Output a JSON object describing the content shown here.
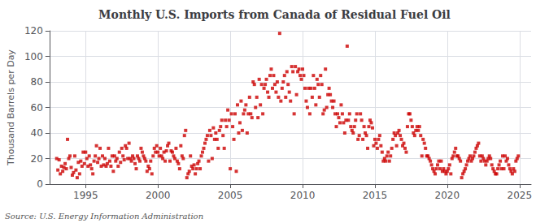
{
  "chart_data": {
    "type": "scatter",
    "title": "Monthly U.S. Imports from Canada of Residual Fuel Oil",
    "ylabel": "Thousand Barrels per Day",
    "annotations": [
      "Source: U.S. Energy Information Administration"
    ],
    "color": "#cc0000",
    "marker": "square",
    "grid": true,
    "xlim": [
      1992.5,
      2025.8
    ],
    "ylim": [
      0,
      120
    ],
    "xticks": [
      1995,
      2000,
      2005,
      2010,
      2015,
      2020,
      2025
    ],
    "yticks": [
      0,
      20,
      40,
      60,
      80,
      100,
      120
    ],
    "x": [
      1993.0,
      1993.083,
      1993.167,
      1993.25,
      1993.333,
      1993.417,
      1993.5,
      1993.583,
      1993.667,
      1993.75,
      1993.833,
      1993.917,
      1994.0,
      1994.083,
      1994.167,
      1994.25,
      1994.333,
      1994.417,
      1994.5,
      1994.583,
      1994.667,
      1994.75,
      1994.833,
      1994.917,
      1995.0,
      1995.083,
      1995.167,
      1995.25,
      1995.333,
      1995.417,
      1995.5,
      1995.583,
      1995.667,
      1995.75,
      1995.833,
      1995.917,
      1996.0,
      1996.083,
      1996.167,
      1996.25,
      1996.333,
      1996.417,
      1996.5,
      1996.583,
      1996.667,
      1996.75,
      1996.833,
      1996.917,
      1997.0,
      1997.083,
      1997.167,
      1997.25,
      1997.333,
      1997.417,
      1997.5,
      1997.583,
      1997.667,
      1997.75,
      1997.833,
      1997.917,
      1998.0,
      1998.083,
      1998.167,
      1998.25,
      1998.333,
      1998.417,
      1998.5,
      1998.583,
      1998.667,
      1998.75,
      1998.833,
      1998.917,
      1999.0,
      1999.083,
      1999.167,
      1999.25,
      1999.333,
      1999.417,
      1999.5,
      1999.583,
      1999.667,
      1999.75,
      1999.833,
      1999.917,
      2000.0,
      2000.083,
      2000.167,
      2000.25,
      2000.333,
      2000.417,
      2000.5,
      2000.583,
      2000.667,
      2000.75,
      2000.833,
      2000.917,
      2001.0,
      2001.083,
      2001.167,
      2001.25,
      2001.333,
      2001.417,
      2001.5,
      2001.583,
      2001.667,
      2001.75,
      2001.833,
      2001.917,
      2002.0,
      2002.083,
      2002.167,
      2002.25,
      2002.333,
      2002.417,
      2002.5,
      2002.583,
      2002.667,
      2002.75,
      2002.833,
      2002.917,
      2003.0,
      2003.083,
      2003.167,
      2003.25,
      2003.333,
      2003.417,
      2003.5,
      2003.583,
      2003.667,
      2003.75,
      2003.833,
      2003.917,
      2004.0,
      2004.083,
      2004.167,
      2004.25,
      2004.333,
      2004.417,
      2004.5,
      2004.583,
      2004.667,
      2004.75,
      2004.833,
      2004.917,
      2005.0,
      2005.083,
      2005.167,
      2005.25,
      2005.333,
      2005.417,
      2005.5,
      2005.583,
      2005.667,
      2005.75,
      2005.833,
      2005.917,
      2006.0,
      2006.083,
      2006.167,
      2006.25,
      2006.333,
      2006.417,
      2006.5,
      2006.583,
      2006.667,
      2006.75,
      2006.833,
      2006.917,
      2007.0,
      2007.083,
      2007.167,
      2007.25,
      2007.333,
      2007.417,
      2007.5,
      2007.583,
      2007.667,
      2007.75,
      2007.833,
      2007.917,
      2008.0,
      2008.083,
      2008.167,
      2008.25,
      2008.333,
      2008.417,
      2008.5,
      2008.583,
      2008.667,
      2008.75,
      2008.833,
      2008.917,
      2009.0,
      2009.083,
      2009.167,
      2009.25,
      2009.333,
      2009.417,
      2009.5,
      2009.583,
      2009.667,
      2009.75,
      2009.833,
      2009.917,
      2010.0,
      2010.083,
      2010.167,
      2010.25,
      2010.333,
      2010.417,
      2010.5,
      2010.583,
      2010.667,
      2010.75,
      2010.833,
      2010.917,
      2011.0,
      2011.083,
      2011.167,
      2011.25,
      2011.333,
      2011.417,
      2011.5,
      2011.583,
      2011.667,
      2011.75,
      2011.833,
      2011.917,
      2012.0,
      2012.083,
      2012.167,
      2012.25,
      2012.333,
      2012.417,
      2012.5,
      2012.583,
      2012.667,
      2012.75,
      2012.833,
      2012.917,
      2013.0,
      2013.083,
      2013.167,
      2013.25,
      2013.333,
      2013.417,
      2013.5,
      2013.583,
      2013.667,
      2013.75,
      2013.833,
      2013.917,
      2014.0,
      2014.083,
      2014.167,
      2014.25,
      2014.333,
      2014.417,
      2014.5,
      2014.583,
      2014.667,
      2014.75,
      2014.833,
      2014.917,
      2015.0,
      2015.083,
      2015.167,
      2015.25,
      2015.333,
      2015.417,
      2015.5,
      2015.583,
      2015.667,
      2015.75,
      2015.833,
      2015.917,
      2016.0,
      2016.083,
      2016.167,
      2016.25,
      2016.333,
      2016.417,
      2016.5,
      2016.583,
      2016.667,
      2016.75,
      2016.833,
      2016.917,
      2017.0,
      2017.083,
      2017.167,
      2017.25,
      2017.333,
      2017.417,
      2017.5,
      2017.583,
      2017.667,
      2017.75,
      2017.833,
      2017.917,
      2018.0,
      2018.083,
      2018.167,
      2018.25,
      2018.333,
      2018.417,
      2018.5,
      2018.583,
      2018.667,
      2018.75,
      2018.833,
      2018.917,
      2019.0,
      2019.083,
      2019.167,
      2019.25,
      2019.333,
      2019.417,
      2019.5,
      2019.583,
      2019.667,
      2019.75,
      2019.833,
      2019.917,
      2020.0,
      2020.083,
      2020.167,
      2020.25,
      2020.333,
      2020.417,
      2020.5,
      2020.583,
      2020.667,
      2020.75,
      2020.833,
      2020.917,
      2021.0,
      2021.083,
      2021.167,
      2021.25,
      2021.333,
      2021.417,
      2021.5,
      2021.583,
      2021.667,
      2021.75,
      2021.833,
      2021.917,
      2022.0,
      2022.083,
      2022.167,
      2022.25,
      2022.333,
      2022.417,
      2022.5,
      2022.583,
      2022.667,
      2022.75,
      2022.833,
      2022.917,
      2023.0,
      2023.083,
      2023.167,
      2023.25,
      2023.333,
      2023.417,
      2023.5,
      2023.583,
      2023.667,
      2023.75,
      2023.833,
      2023.917,
      2024.0,
      2024.083,
      2024.167,
      2024.25,
      2024.333,
      2024.417,
      2024.5,
      2024.583,
      2024.667,
      2024.75,
      2024.833,
      2024.917
    ],
    "values": [
      20,
      11,
      19,
      8,
      14,
      10,
      13,
      16,
      12,
      35,
      20,
      22,
      13,
      7,
      9,
      22,
      11,
      5,
      17,
      8,
      18,
      14,
      25,
      16,
      25,
      20,
      14,
      22,
      15,
      12,
      8,
      18,
      22,
      30,
      17,
      20,
      28,
      14,
      22,
      15,
      20,
      14,
      16,
      28,
      18,
      14,
      22,
      10,
      22,
      18,
      20,
      14,
      25,
      17,
      28,
      22,
      19,
      30,
      28,
      20,
      32,
      20,
      18,
      22,
      20,
      16,
      12,
      22,
      20,
      18,
      28,
      25,
      22,
      20,
      18,
      10,
      14,
      12,
      18,
      8,
      22,
      28,
      25,
      30,
      25,
      22,
      28,
      22,
      20,
      25,
      18,
      26,
      30,
      32,
      18,
      26,
      25,
      22,
      20,
      28,
      18,
      16,
      12,
      30,
      22,
      20,
      38,
      42,
      5,
      8,
      10,
      22,
      14,
      12,
      15,
      8,
      12,
      16,
      18,
      12,
      22,
      25,
      28,
      32,
      35,
      38,
      18,
      42,
      38,
      20,
      44,
      35,
      40,
      35,
      28,
      42,
      45,
      50,
      38,
      28,
      50,
      45,
      58,
      50,
      12,
      55,
      45,
      35,
      55,
      10,
      62,
      40,
      48,
      65,
      42,
      55,
      58,
      62,
      40,
      55,
      68,
      55,
      52,
      80,
      78,
      60,
      68,
      52,
      82,
      62,
      78,
      55,
      75,
      78,
      82,
      72,
      68,
      85,
      90,
      75,
      85,
      78,
      72,
      80,
      68,
      118,
      65,
      75,
      80,
      85,
      68,
      88,
      78,
      72,
      65,
      92,
      88,
      55,
      92,
      70,
      88,
      90,
      85,
      82,
      90,
      85,
      75,
      65,
      60,
      75,
      55,
      75,
      68,
      85,
      75,
      62,
      82,
      78,
      68,
      85,
      78,
      55,
      58,
      90,
      60,
      70,
      75,
      70,
      65,
      60,
      65,
      55,
      45,
      55,
      52,
      48,
      62,
      55,
      48,
      40,
      50,
      108,
      50,
      55,
      45,
      42,
      40,
      45,
      50,
      55,
      35,
      38,
      55,
      50,
      35,
      45,
      40,
      38,
      28,
      45,
      50,
      48,
      44,
      30,
      35,
      32,
      28,
      35,
      38,
      30,
      25,
      18,
      20,
      18,
      22,
      25,
      18,
      22,
      28,
      35,
      40,
      38,
      30,
      40,
      42,
      38,
      35,
      30,
      32,
      28,
      25,
      45,
      55,
      55,
      50,
      45,
      40,
      38,
      42,
      45,
      42,
      45,
      38,
      22,
      35,
      32,
      28,
      22,
      22,
      20,
      18,
      15,
      12,
      10,
      8,
      12,
      15,
      18,
      12,
      18,
      10,
      12,
      10,
      8,
      10,
      12,
      15,
      8,
      20,
      22,
      25,
      28,
      22,
      22,
      20,
      18,
      5,
      8,
      10,
      12,
      15,
      18,
      20,
      22,
      18,
      20,
      22,
      25,
      28,
      30,
      32,
      22,
      18,
      22,
      20,
      18,
      15,
      18,
      20,
      22,
      20,
      15,
      12,
      10,
      8,
      8,
      12,
      15,
      18,
      12,
      22,
      12,
      22,
      18,
      20,
      15,
      12,
      10,
      8,
      12,
      10,
      18,
      20,
      22
    ]
  }
}
